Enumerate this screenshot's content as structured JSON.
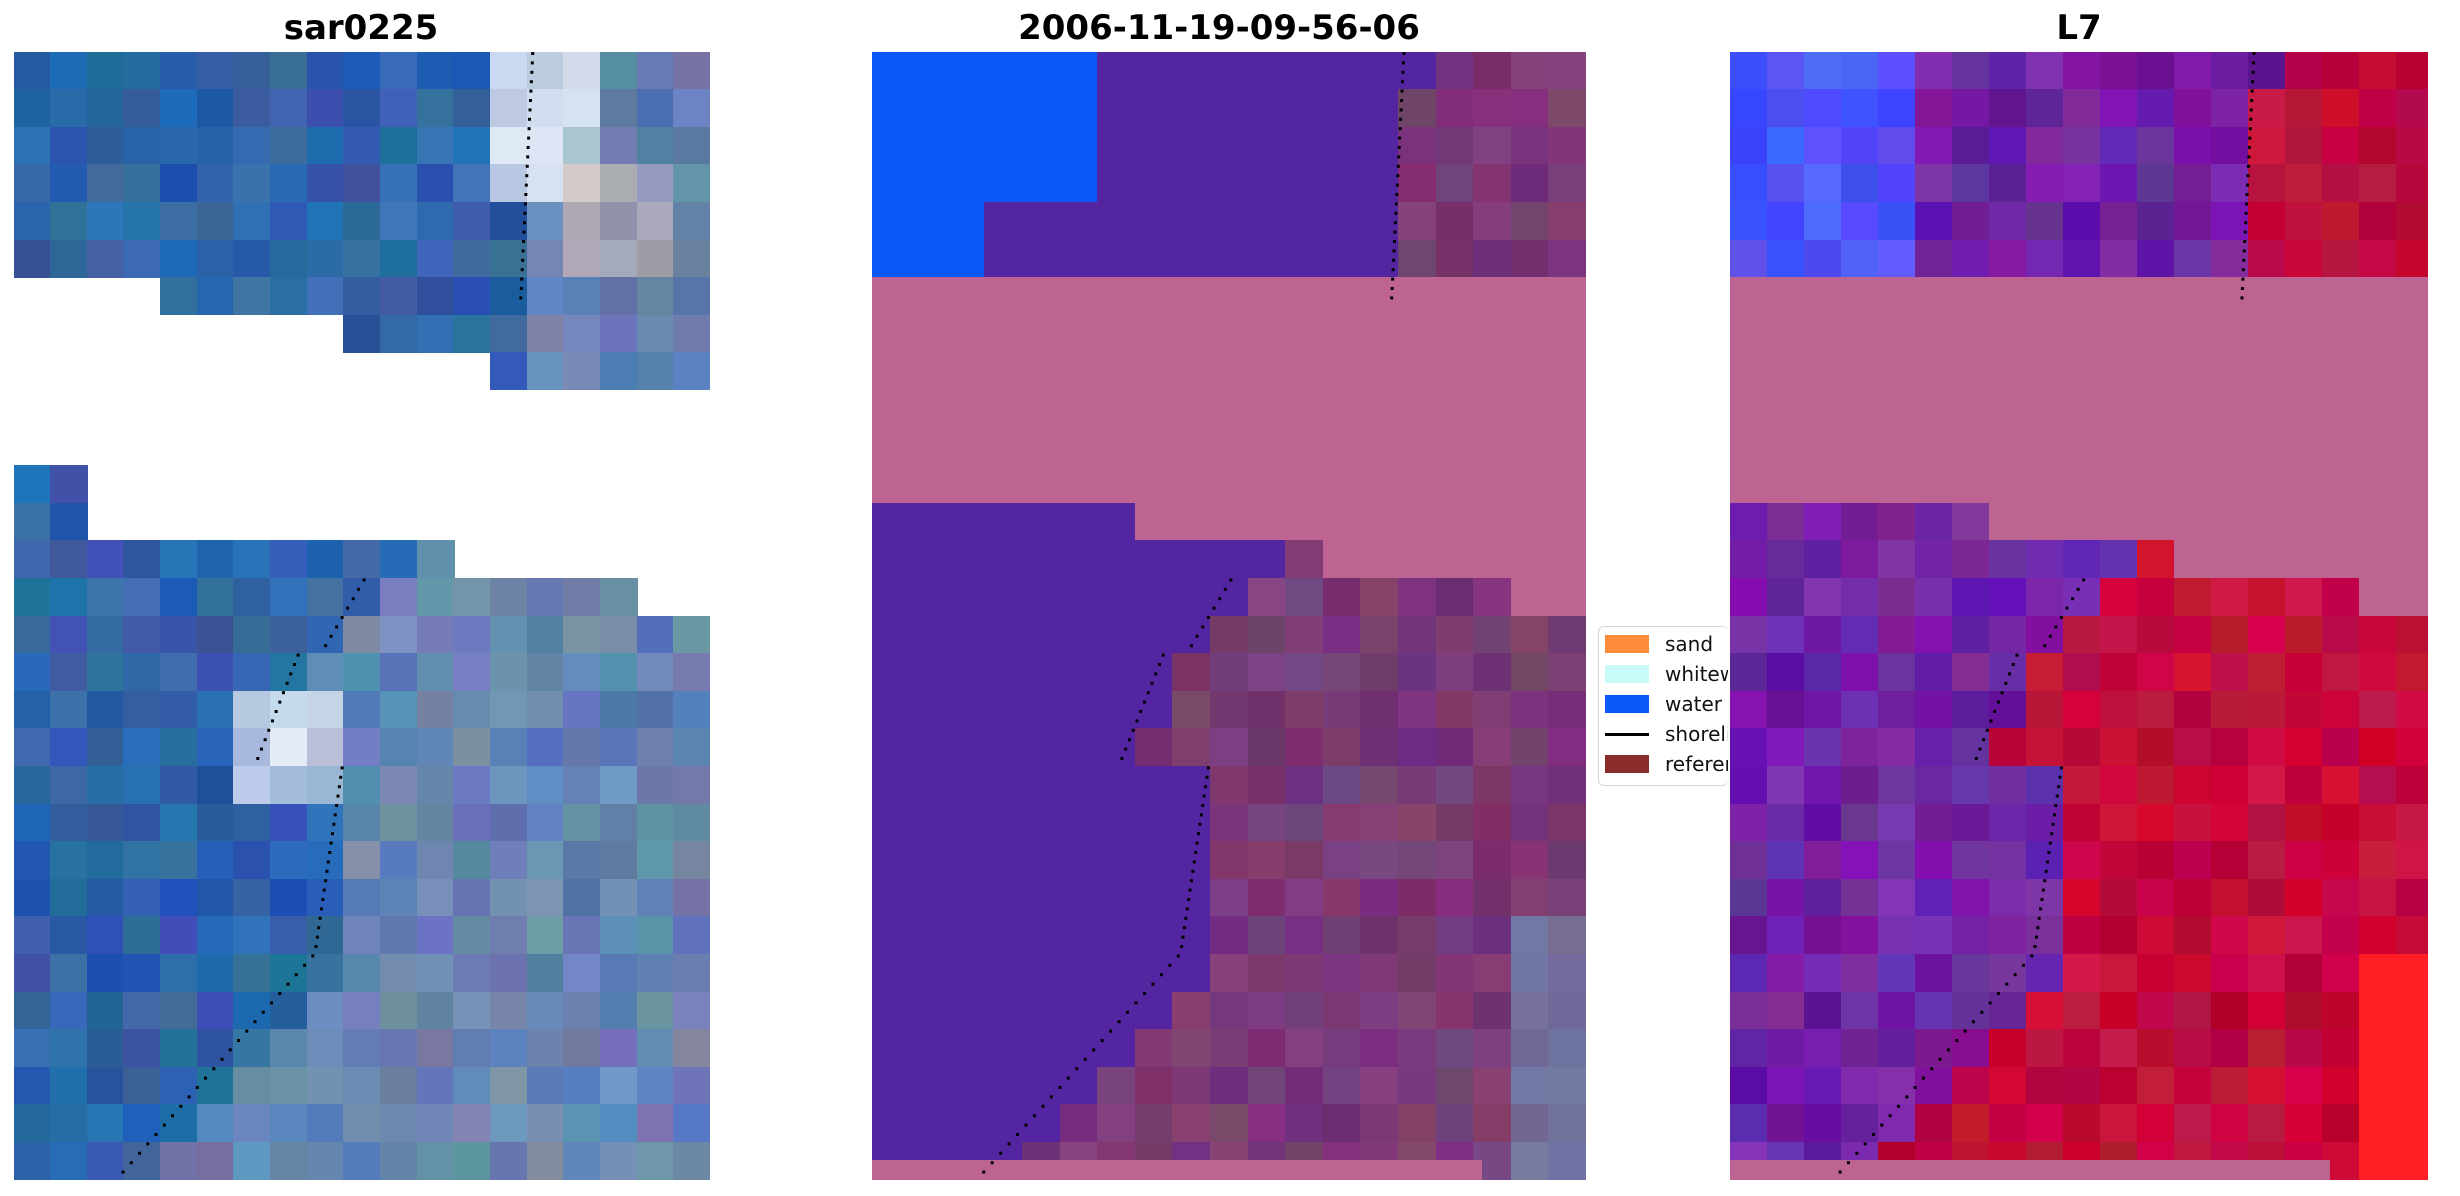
{
  "titles": {
    "left": "sar0225",
    "center": "2006-11-19-09-56-06",
    "right": "L7"
  },
  "legend": {
    "items": [
      {
        "label": "sand",
        "color": "#ff8c3a",
        "kind": "patch"
      },
      {
        "label": "whitewater",
        "color": "#c8fbfa",
        "kind": "patch"
      },
      {
        "label": "water",
        "color": "#0a58f5",
        "kind": "patch"
      },
      {
        "label": "shoreline",
        "color": "#000000",
        "kind": "line"
      },
      {
        "label": "reference",
        "color": "#8b2c2c",
        "kind": "patch"
      }
    ]
  },
  "colors": {
    "ocean_rgb": "#2f62a8",
    "classified_water": "#5325a0",
    "classified_other": "#bd6493",
    "land_blend": "#7a3a75",
    "l7_water": "#7022a4",
    "l7_land": "#c40a3b",
    "mndwi_blue": "#4a5aff",
    "shoreline_dots": "#000000"
  }
}
